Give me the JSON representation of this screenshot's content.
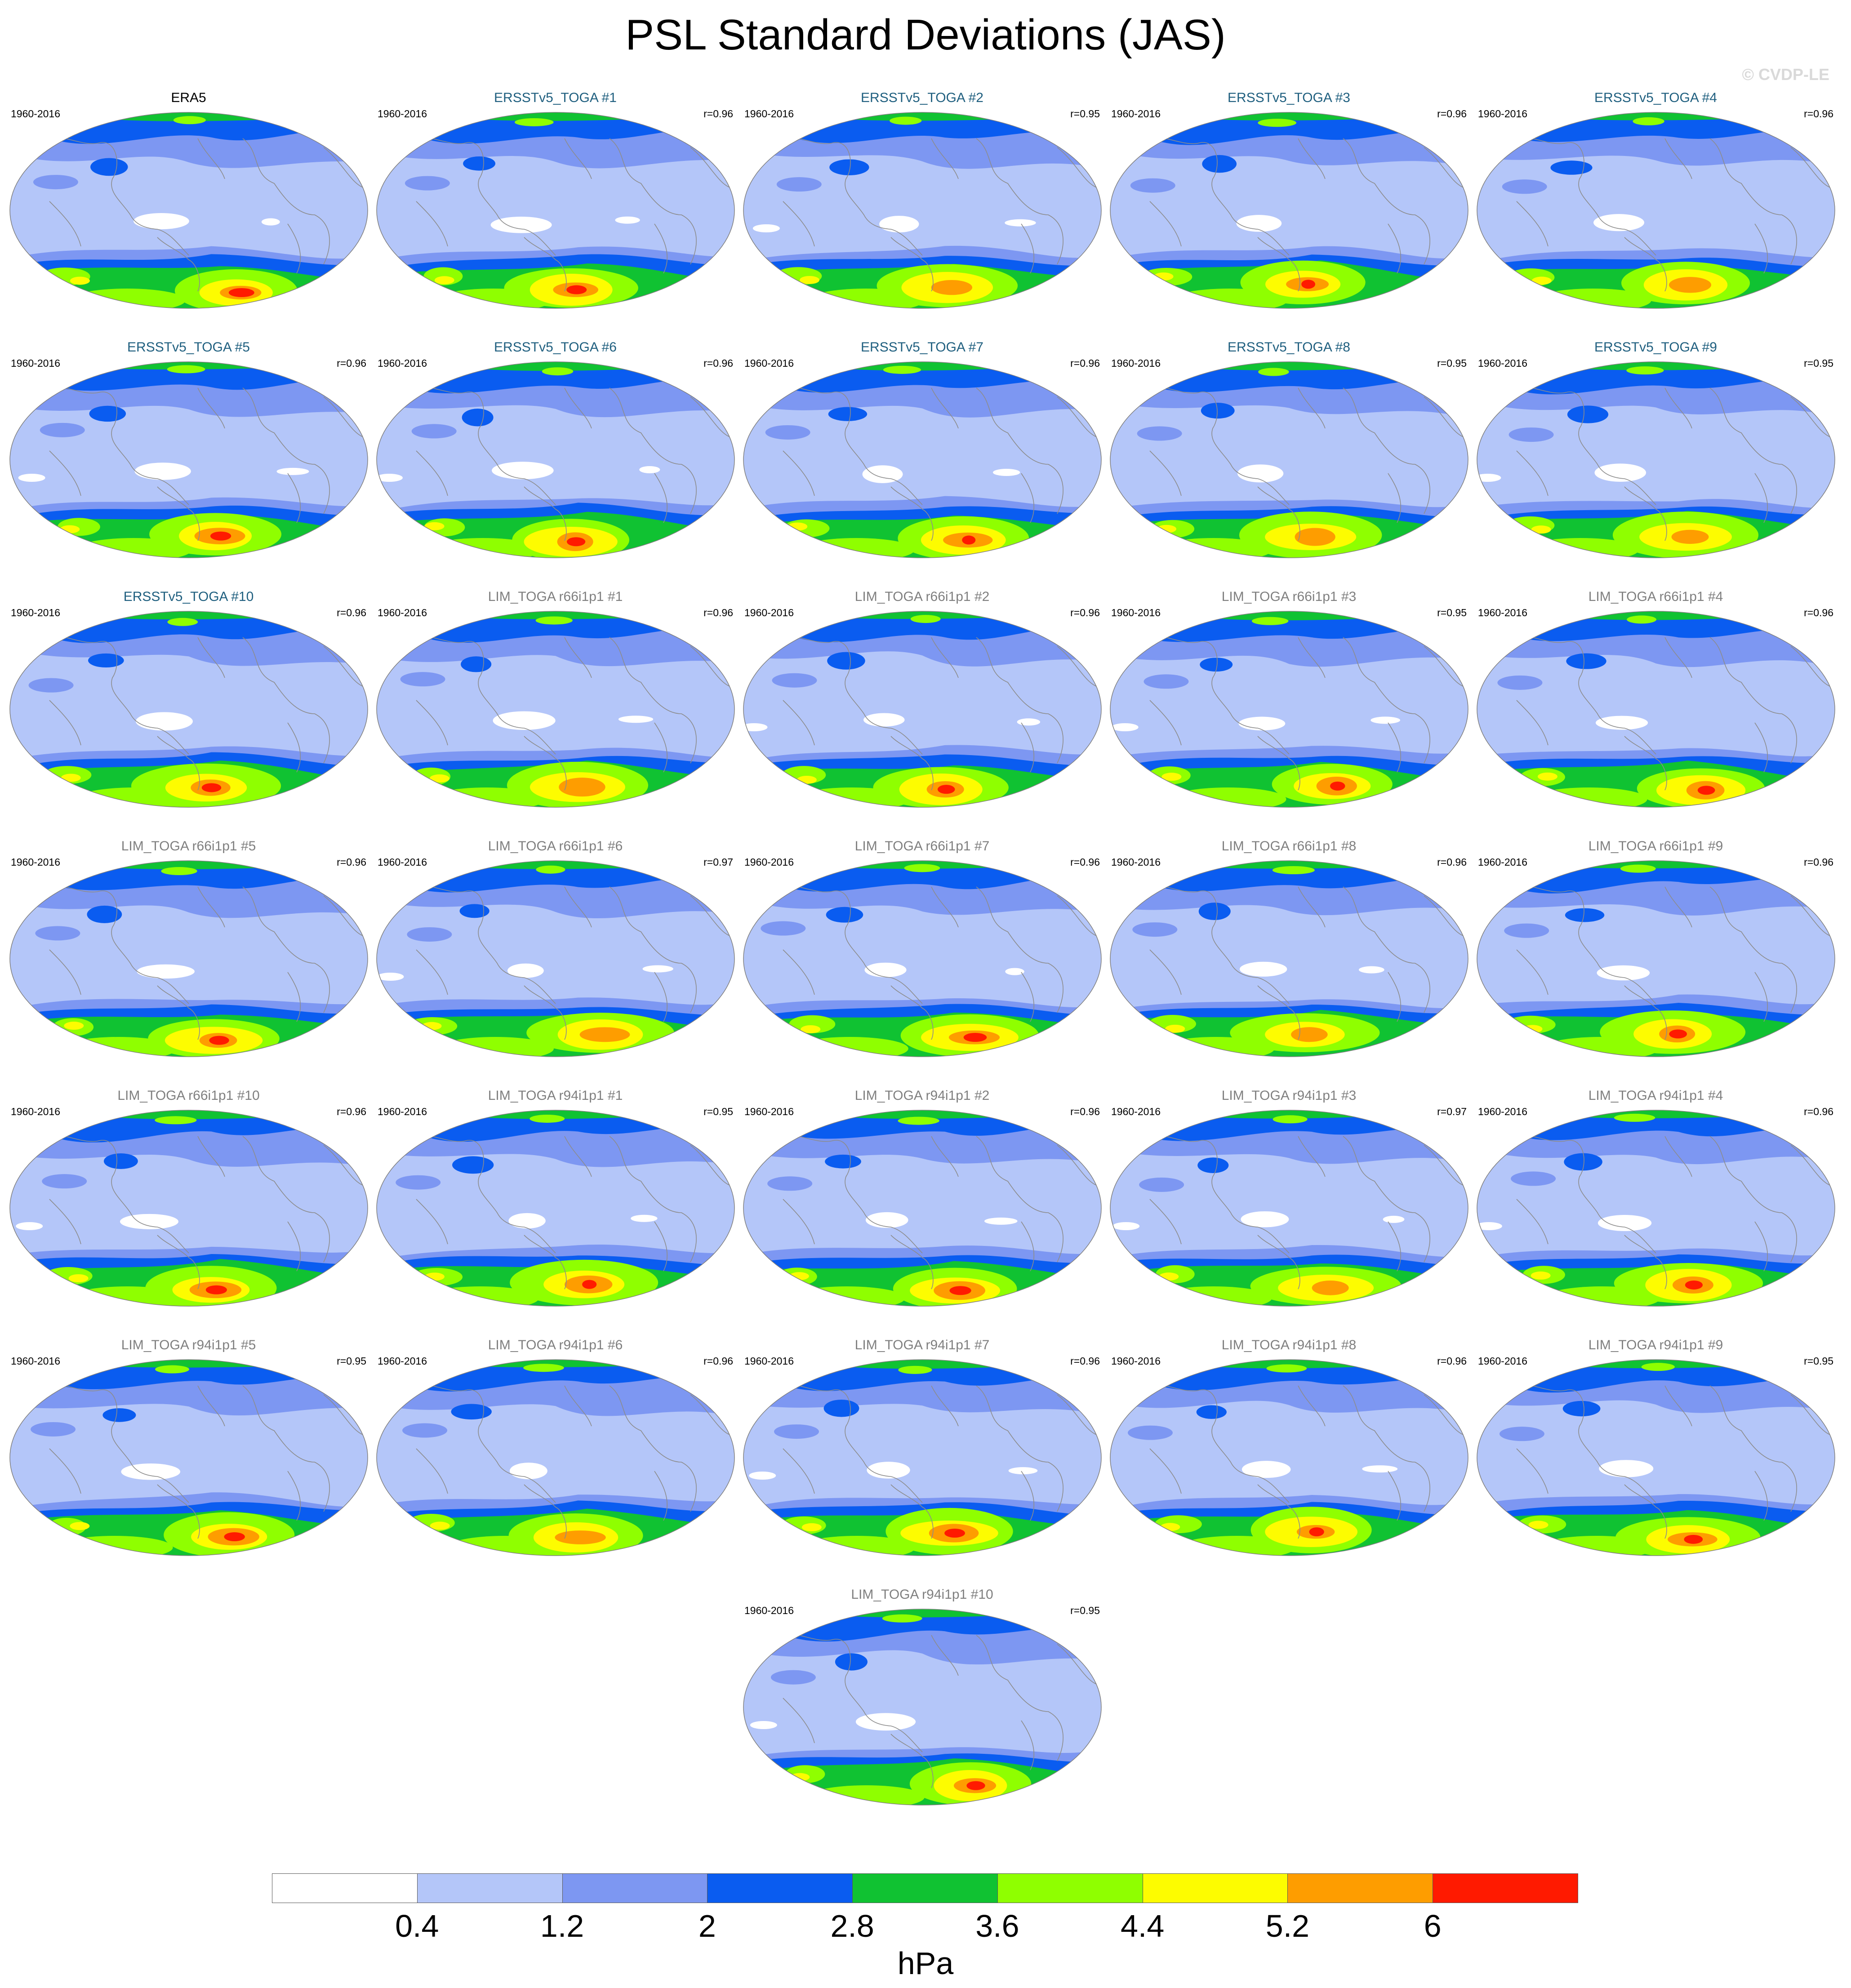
{
  "title": "PSL Standard Deviations (JAS)",
  "watermark": "© CVDP-LE",
  "units": "hPa",
  "colorbar": {
    "levels": [
      "0.4",
      "1.2",
      "2",
      "2.8",
      "3.6",
      "4.4",
      "5.2",
      "6"
    ],
    "colors": [
      "#ffffff",
      "#b4c6f9",
      "#7d97f2",
      "#0a5cf0",
      "#10c232",
      "#8fff00",
      "#fdfc00",
      "#fe9d00",
      "#ff1a00"
    ]
  },
  "panels": [
    {
      "title": "ERA5",
      "years": "1960-2016",
      "corr": "",
      "kind": "obs"
    },
    {
      "title": "ERSSTv5_TOGA #1",
      "years": "1960-2016",
      "corr": "r=0.96",
      "kind": "ersst"
    },
    {
      "title": "ERSSTv5_TOGA #2",
      "years": "1960-2016",
      "corr": "r=0.95",
      "kind": "ersst"
    },
    {
      "title": "ERSSTv5_TOGA #3",
      "years": "1960-2016",
      "corr": "r=0.96",
      "kind": "ersst"
    },
    {
      "title": "ERSSTv5_TOGA #4",
      "years": "1960-2016",
      "corr": "r=0.96",
      "kind": "ersst"
    },
    {
      "title": "ERSSTv5_TOGA #5",
      "years": "1960-2016",
      "corr": "r=0.96",
      "kind": "ersst"
    },
    {
      "title": "ERSSTv5_TOGA #6",
      "years": "1960-2016",
      "corr": "r=0.96",
      "kind": "ersst"
    },
    {
      "title": "ERSSTv5_TOGA #7",
      "years": "1960-2016",
      "corr": "r=0.96",
      "kind": "ersst"
    },
    {
      "title": "ERSSTv5_TOGA #8",
      "years": "1960-2016",
      "corr": "r=0.95",
      "kind": "ersst"
    },
    {
      "title": "ERSSTv5_TOGA #9",
      "years": "1960-2016",
      "corr": "r=0.95",
      "kind": "ersst"
    },
    {
      "title": "ERSSTv5_TOGA #10",
      "years": "1960-2016",
      "corr": "r=0.96",
      "kind": "ersst"
    },
    {
      "title": "LIM_TOGA r66i1p1 #1",
      "years": "1960-2016",
      "corr": "r=0.96",
      "kind": "lim"
    },
    {
      "title": "LIM_TOGA r66i1p1 #2",
      "years": "1960-2016",
      "corr": "r=0.96",
      "kind": "lim"
    },
    {
      "title": "LIM_TOGA r66i1p1 #3",
      "years": "1960-2016",
      "corr": "r=0.95",
      "kind": "lim"
    },
    {
      "title": "LIM_TOGA r66i1p1 #4",
      "years": "1960-2016",
      "corr": "r=0.96",
      "kind": "lim"
    },
    {
      "title": "LIM_TOGA r66i1p1 #5",
      "years": "1960-2016",
      "corr": "r=0.96",
      "kind": "lim"
    },
    {
      "title": "LIM_TOGA r66i1p1 #6",
      "years": "1960-2016",
      "corr": "r=0.97",
      "kind": "lim"
    },
    {
      "title": "LIM_TOGA r66i1p1 #7",
      "years": "1960-2016",
      "corr": "r=0.96",
      "kind": "lim"
    },
    {
      "title": "LIM_TOGA r66i1p1 #8",
      "years": "1960-2016",
      "corr": "r=0.96",
      "kind": "lim"
    },
    {
      "title": "LIM_TOGA r66i1p1 #9",
      "years": "1960-2016",
      "corr": "r=0.96",
      "kind": "lim"
    },
    {
      "title": "LIM_TOGA r66i1p1 #10",
      "years": "1960-2016",
      "corr": "r=0.96",
      "kind": "lim"
    },
    {
      "title": "LIM_TOGA r94i1p1 #1",
      "years": "1960-2016",
      "corr": "r=0.95",
      "kind": "lim"
    },
    {
      "title": "LIM_TOGA r94i1p1 #2",
      "years": "1960-2016",
      "corr": "r=0.96",
      "kind": "lim"
    },
    {
      "title": "LIM_TOGA r94i1p1 #3",
      "years": "1960-2016",
      "corr": "r=0.97",
      "kind": "lim"
    },
    {
      "title": "LIM_TOGA r94i1p1 #4",
      "years": "1960-2016",
      "corr": "r=0.96",
      "kind": "lim"
    },
    {
      "title": "LIM_TOGA r94i1p1 #5",
      "years": "1960-2016",
      "corr": "r=0.95",
      "kind": "lim"
    },
    {
      "title": "LIM_TOGA r94i1p1 #6",
      "years": "1960-2016",
      "corr": "r=0.96",
      "kind": "lim"
    },
    {
      "title": "LIM_TOGA r94i1p1 #7",
      "years": "1960-2016",
      "corr": "r=0.96",
      "kind": "lim"
    },
    {
      "title": "LIM_TOGA r94i1p1 #8",
      "years": "1960-2016",
      "corr": "r=0.96",
      "kind": "lim"
    },
    {
      "title": "LIM_TOGA r94i1p1 #9",
      "years": "1960-2016",
      "corr": "r=0.95",
      "kind": "lim"
    },
    {
      "title": "LIM_TOGA r94i1p1 #10",
      "years": "1960-2016",
      "corr": "r=0.95",
      "kind": "lim"
    }
  ]
}
